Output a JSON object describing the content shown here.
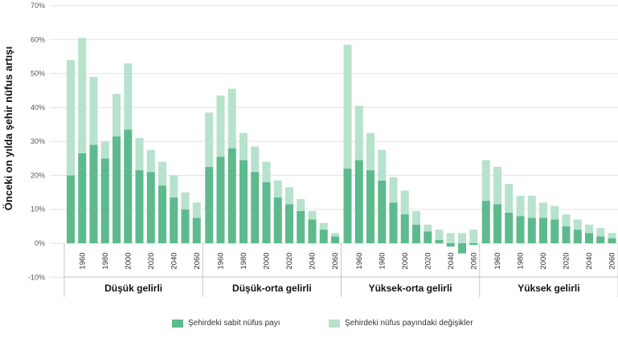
{
  "colors": {
    "base": "#5dba8c",
    "change": "#b7e2cd",
    "grid": "#e2e2e2",
    "divider": "#c8c8c8"
  },
  "legend": {
    "base_label": "Şehirdeki sabit nüfus payı",
    "change_label": "Şehirdeki nüfus payındaki değişikler"
  },
  "chart_data": {
    "type": "bar",
    "stacked": true,
    "ylabel": "Önceki on yılda şehir nüfus artışı",
    "ylim": [
      -10,
      70
    ],
    "yticks": [
      -10,
      0,
      10,
      20,
      30,
      40,
      50,
      60,
      70
    ],
    "ytick_labels": [
      "-10%",
      "0%",
      "10%",
      "20%",
      "30%",
      "40%",
      "50%",
      "60%",
      "70%"
    ],
    "grid": true,
    "legend_position": "bottom",
    "series_names": [
      "Şehirdeki sabit nüfus payı",
      "Şehirdeki nüfus payındaki değişikler"
    ],
    "x_tick_labels": [
      "1960",
      "1980",
      "2000",
      "2020",
      "2040",
      "2060"
    ],
    "groups": [
      {
        "name": "Düşük gelirli",
        "years": [
          1950,
          1960,
          1970,
          1980,
          1990,
          2000,
          2010,
          2020,
          2030,
          2040,
          2050,
          2060
        ],
        "base": [
          20,
          26.5,
          29,
          25,
          31.5,
          33.5,
          21.5,
          21,
          17,
          13.5,
          10,
          7.5
        ],
        "change": [
          34,
          34,
          20,
          5,
          12.5,
          19.5,
          9.5,
          6.5,
          7,
          6.5,
          5,
          4.5
        ]
      },
      {
        "name": "Düşük-orta gelirli",
        "years": [
          1950,
          1960,
          1970,
          1980,
          1990,
          2000,
          2010,
          2020,
          2030,
          2040,
          2050,
          2060
        ],
        "base": [
          22.5,
          25.5,
          28,
          24.5,
          21,
          18,
          13.5,
          11.5,
          9.5,
          7,
          4,
          2
        ],
        "change": [
          16,
          18,
          17.5,
          8,
          7.5,
          6,
          5,
          5,
          3.5,
          2.5,
          2,
          1
        ]
      },
      {
        "name": "Yüksek-orta gelirli",
        "years": [
          1950,
          1960,
          1970,
          1980,
          1990,
          2000,
          2010,
          2020,
          2030,
          2040,
          2050,
          2060
        ],
        "base": [
          22,
          24.5,
          21.5,
          18.5,
          12,
          8.5,
          5.5,
          3.5,
          1,
          -1,
          -3,
          -0.5
        ],
        "change": [
          36.5,
          16,
          11,
          9,
          7.5,
          7,
          4,
          2,
          3,
          3,
          3,
          4
        ]
      },
      {
        "name": "Yüksek gelirli",
        "years": [
          1950,
          1960,
          1970,
          1980,
          1990,
          2000,
          2010,
          2020,
          2030,
          2040,
          2050,
          2060
        ],
        "base": [
          12.5,
          11.5,
          9,
          8,
          7.5,
          7.5,
          7,
          5,
          4,
          3,
          2,
          1.5
        ],
        "change": [
          12,
          11,
          8.5,
          6,
          6.5,
          4.5,
          4,
          3.5,
          3,
          2.5,
          2.5,
          1.5
        ]
      }
    ]
  }
}
